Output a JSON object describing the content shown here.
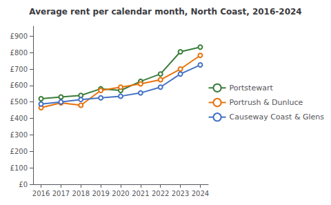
{
  "chart_data": {
    "type": "line",
    "title": "Average rent per calendar month, North Coast, 2016-2024",
    "x": [
      2016,
      2017,
      2018,
      2019,
      2020,
      2021,
      2022,
      2023,
      2024
    ],
    "series": [
      {
        "name": "Portstewart",
        "color": "#3a7d3a",
        "values": [
          520,
          530,
          540,
          580,
          570,
          625,
          670,
          805,
          833
        ]
      },
      {
        "name": "Portrush & Dunluce",
        "color": "#e8720c",
        "values": [
          465,
          495,
          480,
          570,
          590,
          610,
          635,
          700,
          783
        ]
      },
      {
        "name": "Causeway Coast & Glens",
        "color": "#4472c4",
        "values": [
          487,
          500,
          515,
          525,
          535,
          555,
          590,
          670,
          725
        ]
      }
    ],
    "xlim": [
      2015.6,
      2024.4
    ],
    "xticks": [
      2016,
      2017,
      2018,
      2019,
      2020,
      2021,
      2022,
      2023,
      2024
    ],
    "ylim": [
      0,
      960
    ],
    "yticks": [
      {
        "value": 0,
        "label": "£0"
      },
      {
        "value": 100,
        "label": "£100"
      },
      {
        "value": 200,
        "label": "£200"
      },
      {
        "value": 300,
        "label": "£300"
      },
      {
        "value": 400,
        "label": "£400"
      },
      {
        "value": 500,
        "label": "£500"
      },
      {
        "value": 600,
        "label": "£600"
      },
      {
        "value": 700,
        "label": "£700"
      },
      {
        "value": 800,
        "label": "£800"
      },
      {
        "value": 900,
        "label": "£900"
      }
    ],
    "grid": false,
    "legend": "right"
  }
}
